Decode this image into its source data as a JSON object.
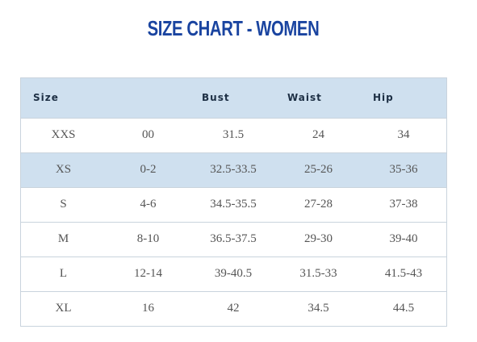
{
  "title": "SIZE CHART - WOMEN",
  "colors": {
    "title": "#1a44a0",
    "header_bg": "#cfe0ef",
    "shaded_row_bg": "#cfe0ef",
    "border": "#c9d3dd",
    "cell_text": "#555555"
  },
  "table": {
    "headers": [
      "Size",
      "",
      "Bust",
      "Waist",
      "Hip"
    ],
    "rows": [
      [
        "XXS",
        "00",
        "31.5",
        "24",
        "34"
      ],
      [
        "XS",
        "0-2",
        "32.5-33.5",
        "25-26",
        "35-36"
      ],
      [
        "S",
        "4-6",
        "34.5-35.5",
        "27-28",
        "37-38"
      ],
      [
        "M",
        "8-10",
        "36.5-37.5",
        "29-30",
        "39-40"
      ],
      [
        "L",
        "12-14",
        "39-40.5",
        "31.5-33",
        "41.5-43"
      ],
      [
        "XL",
        "16",
        "42",
        "34.5",
        "44.5"
      ]
    ]
  }
}
